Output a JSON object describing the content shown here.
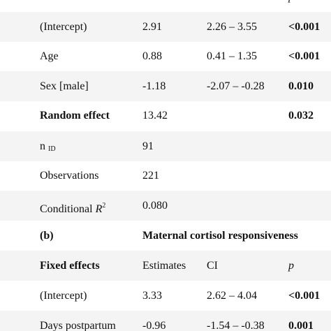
{
  "header": {
    "p": "p"
  },
  "rows": [
    {
      "label": "(Intercept)",
      "estimate": "2.91",
      "ci": "2.26 – 3.55",
      "p": "<0.001"
    },
    {
      "label": "Age",
      "estimate": "0.88",
      "ci": "0.41 – 1.35",
      "p": "<0.001"
    },
    {
      "label": "Sex [male]",
      "estimate": "-1.18",
      "ci": "-2.07 – -0.28",
      "p": "0.010"
    },
    {
      "label": "Random effect",
      "estimate": "13.42",
      "p": "0.032"
    },
    {
      "label": "n",
      "sub": "ID",
      "estimate": "91"
    },
    {
      "label": "Observations",
      "estimate": "221"
    },
    {
      "label": "Conditional",
      "italic": "R",
      "sup": "2",
      "estimate": "0.080"
    }
  ],
  "section_b": {
    "label": "(b)",
    "title": "Maternal cortisol responsiveness",
    "header": {
      "label": "Fixed effects",
      "estimate": "Estimates",
      "ci": "CI",
      "p": "p"
    },
    "rows": [
      {
        "label": "(Intercept)",
        "estimate": "3.33",
        "ci": "2.62 – 4.04",
        "p": "<0.001"
      },
      {
        "label": "Days postpartum",
        "estimate": "-0.96",
        "ci": "-1.54 – -0.38",
        "p": "0.001"
      }
    ]
  }
}
